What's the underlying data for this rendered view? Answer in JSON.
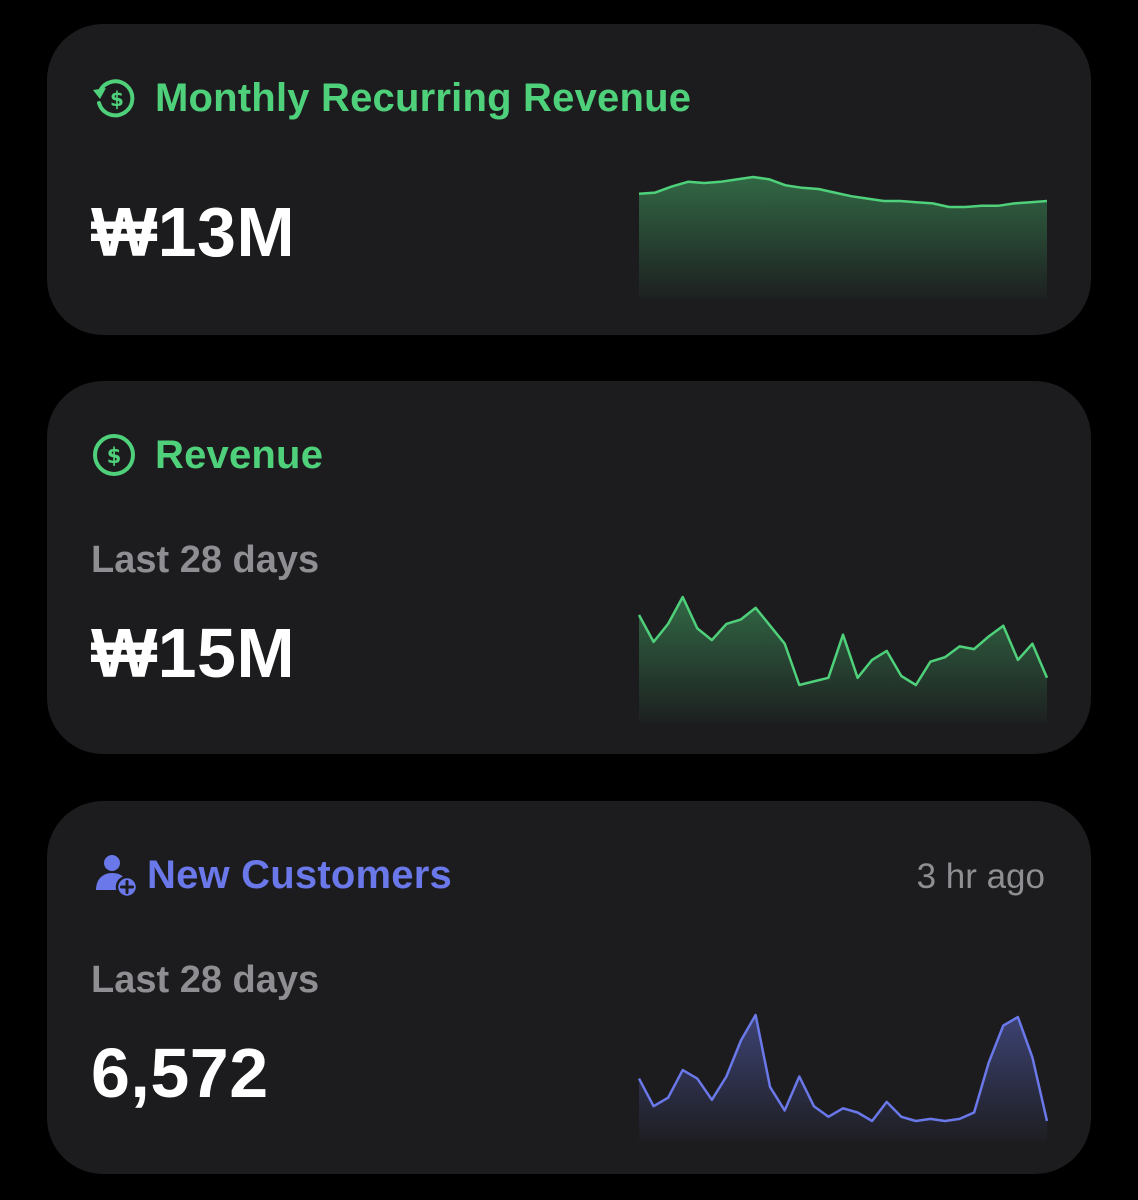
{
  "colors": {
    "background": "#000000",
    "card": "#1c1c1e",
    "green": "#4fd07a",
    "blue": "#6a78ea",
    "muted": "#8e8e93",
    "white": "#ffffff"
  },
  "widgets": {
    "mrr": {
      "icon": "recurring-dollar-icon",
      "title": "Monthly Recurring Revenue",
      "value": "₩13M",
      "spark": [
        1.0,
        1.01,
        1.06,
        1.1,
        1.09,
        1.1,
        1.12,
        1.14,
        1.12,
        1.07,
        1.05,
        1.04,
        1.01,
        0.98,
        0.96,
        0.94,
        0.94,
        0.93,
        0.92,
        0.89,
        0.89,
        0.9,
        0.9,
        0.92,
        0.93,
        0.94
      ]
    },
    "revenue": {
      "icon": "dollar-circle-icon",
      "title": "Revenue",
      "subtitle": "Last 28 days",
      "value": "₩15M",
      "spark": [
        0.8,
        0.5,
        0.7,
        1.0,
        0.65,
        0.52,
        0.7,
        0.75,
        0.88,
        0.68,
        0.48,
        0.02,
        0.06,
        0.1,
        0.58,
        0.1,
        0.3,
        0.4,
        0.12,
        0.02,
        0.28,
        0.33,
        0.45,
        0.42,
        0.56,
        0.68,
        0.3,
        0.48,
        0.1
      ]
    },
    "customers": {
      "icon": "add-person-icon",
      "title": "New Customers",
      "timestamp": "3 hr ago",
      "subtitle": "Last 28 days",
      "value": "6,572",
      "spark": [
        0.4,
        0.14,
        0.22,
        0.48,
        0.4,
        0.2,
        0.42,
        0.76,
        1.0,
        0.32,
        0.1,
        0.42,
        0.14,
        0.04,
        0.12,
        0.08,
        0.0,
        0.18,
        0.04,
        0.0,
        0.02,
        0.0,
        0.02,
        0.08,
        0.55,
        0.9,
        0.98,
        0.6,
        0.0
      ]
    }
  }
}
